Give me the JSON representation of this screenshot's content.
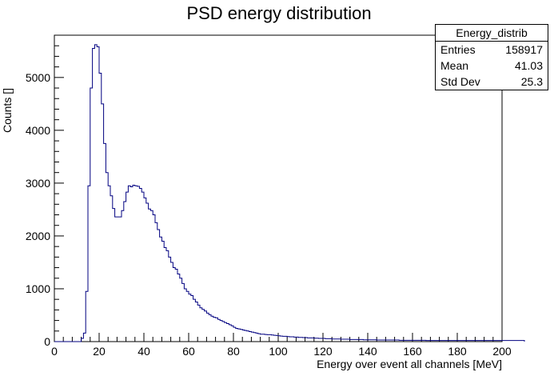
{
  "chart_data": {
    "type": "histogram",
    "title": "PSD energy distribution",
    "xlabel": "Energy over event all channels [MeV]",
    "ylabel": "Counts []",
    "xlim": [
      0,
      200
    ],
    "ylim": [
      0,
      5800
    ],
    "xticks": [
      0,
      20,
      40,
      60,
      80,
      100,
      120,
      140,
      160,
      180,
      200
    ],
    "yticks": [
      0,
      1000,
      2000,
      3000,
      4000,
      5000
    ],
    "grid": false,
    "line_color": "#000080",
    "bin_width": 1,
    "counts": [
      0,
      0,
      0,
      0,
      0,
      0,
      0,
      0,
      0,
      0,
      0,
      0,
      60,
      160,
      950,
      2950,
      4800,
      5550,
      5620,
      5580,
      5080,
      4500,
      3750,
      3200,
      2950,
      2760,
      2520,
      2360,
      2360,
      2360,
      2480,
      2650,
      2830,
      2950,
      2930,
      2960,
      2950,
      2940,
      2900,
      2830,
      2720,
      2620,
      2510,
      2480,
      2400,
      2250,
      2120,
      1980,
      1900,
      1780,
      1720,
      1600,
      1500,
      1400,
      1370,
      1280,
      1200,
      1100,
      1000,
      950,
      900,
      870,
      800,
      750,
      690,
      640,
      610,
      580,
      540,
      510,
      480,
      460,
      450,
      420,
      400,
      380,
      360,
      340,
      320,
      300,
      270,
      250,
      240,
      230,
      220,
      210,
      200,
      190,
      180,
      170,
      160,
      150,
      140,
      140,
      135,
      130,
      130,
      125,
      120,
      115,
      110,
      105,
      100,
      100,
      95,
      90,
      90,
      85,
      85,
      80,
      80,
      75,
      75,
      70,
      70,
      70,
      65,
      65,
      60,
      60,
      60,
      55,
      55,
      55,
      50,
      50,
      50,
      50,
      45,
      45,
      45,
      45,
      40,
      40,
      40,
      40,
      40,
      40,
      35,
      35,
      35,
      35,
      35,
      35,
      30,
      30,
      30,
      30,
      30,
      30,
      30,
      30,
      30,
      30,
      25,
      25,
      25,
      25,
      25,
      25,
      25,
      25,
      25,
      25,
      25,
      25,
      20,
      20,
      20,
      20,
      20,
      20,
      20,
      20,
      20,
      20,
      20,
      20,
      20,
      20,
      20,
      20,
      20,
      20,
      20,
      20,
      20,
      20,
      20,
      20,
      20,
      20,
      20,
      20,
      20,
      20,
      20,
      20,
      20,
      20,
      20,
      20,
      20,
      20,
      20,
      20,
      20,
      20,
      20,
      20
    ]
  },
  "stats_box": {
    "name": "Energy_distrib",
    "rows": [
      {
        "label": "Entries",
        "value": "158917"
      },
      {
        "label": "Mean",
        "value": "41.03"
      },
      {
        "label": "Std Dev",
        "value": "25.3"
      }
    ]
  }
}
